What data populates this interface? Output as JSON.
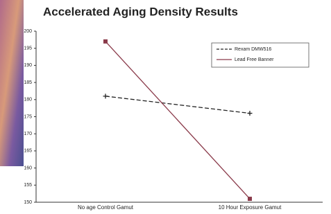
{
  "chart_data": {
    "type": "line",
    "title": "Accelerated Aging Density Results",
    "categories": [
      "No age Control Gamut",
      "10 Hour Exposure Gamut"
    ],
    "series": [
      {
        "name": "Rexam DMW516",
        "color": "#222222",
        "dash": true,
        "marker": "plus",
        "values": [
          181,
          176
        ]
      },
      {
        "name": "Lead Free Banner",
        "color": "#8a3a4a",
        "dash": false,
        "marker": "square",
        "values": [
          197,
          151
        ]
      }
    ],
    "ylim": [
      150,
      200
    ],
    "yticks": [
      150,
      155,
      160,
      165,
      170,
      175,
      180,
      185,
      190,
      195,
      200
    ],
    "grid": false
  }
}
